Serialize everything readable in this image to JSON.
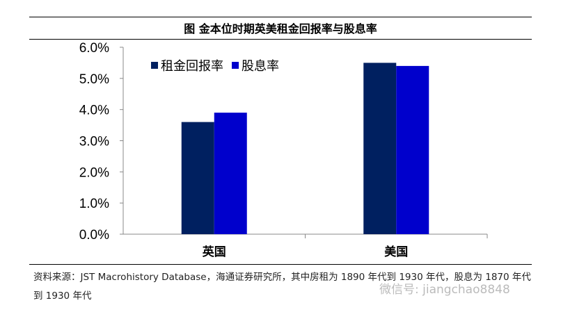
{
  "title": "图  金本位时期英美租金回报率与股息率",
  "source": "资料来源：JST Macrohistory Database，海通证券研究所，其中房租为 1890 年代到 1930 年代，股息为 1870 年代到 1930 年代",
  "watermark": "微信号: jiangchao8848",
  "chart_data": {
    "type": "bar",
    "categories": [
      "英国",
      "美国"
    ],
    "series": [
      {
        "name": "租金回报率",
        "values": [
          3.6,
          5.5
        ],
        "color": "#002060"
      },
      {
        "name": "股息率",
        "values": [
          3.9,
          5.4
        ],
        "color": "#0000CC"
      }
    ],
    "ylim": [
      0,
      6
    ],
    "yticks": [
      "0.0%",
      "1.0%",
      "2.0%",
      "3.0%",
      "4.0%",
      "5.0%",
      "6.0%"
    ],
    "grid": false,
    "legend": "top-left"
  }
}
